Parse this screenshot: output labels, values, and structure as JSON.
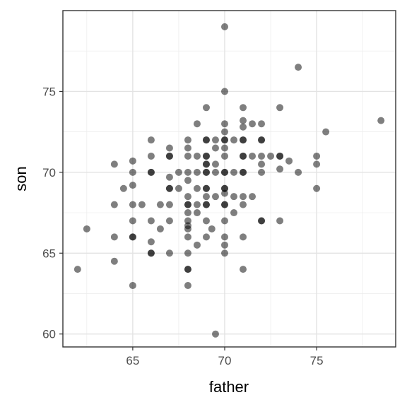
{
  "chart_data": {
    "type": "scatter",
    "title": "",
    "xlabel": "father",
    "ylabel": "son",
    "xlim": [
      61.2,
      79.3
    ],
    "ylim": [
      59.2,
      80.0
    ],
    "x_ticks": [
      65,
      70,
      75
    ],
    "y_ticks": [
      60,
      65,
      70,
      75
    ],
    "x_tick_labels": [
      "65",
      "70",
      "75"
    ],
    "y_tick_labels": [
      "60",
      "65",
      "70",
      "75"
    ],
    "grid": true,
    "legend": "none",
    "point_color": "#000000",
    "point_opacity": 0.5,
    "points": [
      [
        62,
        64
      ],
      [
        62.5,
        66.5
      ],
      [
        64,
        70.5
      ],
      [
        64,
        68
      ],
      [
        64,
        66
      ],
      [
        64,
        64.5
      ],
      [
        64.5,
        69
      ],
      [
        65,
        70.7
      ],
      [
        65,
        70
      ],
      [
        65,
        69.2
      ],
      [
        65,
        68
      ],
      [
        65,
        67
      ],
      [
        65,
        66
      ],
      [
        65,
        66
      ],
      [
        65,
        63
      ],
      [
        65.5,
        68
      ],
      [
        66,
        72
      ],
      [
        66,
        71
      ],
      [
        66,
        70
      ],
      [
        66,
        70
      ],
      [
        66,
        67
      ],
      [
        66,
        65.7
      ],
      [
        66,
        65
      ],
      [
        66,
        65
      ],
      [
        66.5,
        68
      ],
      [
        66.5,
        66.5
      ],
      [
        67,
        71.5
      ],
      [
        67,
        71
      ],
      [
        67,
        71
      ],
      [
        67,
        69.7
      ],
      [
        67,
        69
      ],
      [
        67,
        69
      ],
      [
        67,
        68
      ],
      [
        67,
        67
      ],
      [
        67,
        65
      ],
      [
        67.5,
        70
      ],
      [
        67.5,
        69
      ],
      [
        68,
        72
      ],
      [
        68,
        71.5
      ],
      [
        68,
        71
      ],
      [
        68,
        70
      ],
      [
        68,
        69.5
      ],
      [
        68,
        68.5
      ],
      [
        68,
        68
      ],
      [
        68,
        68
      ],
      [
        68,
        67.5
      ],
      [
        68,
        67
      ],
      [
        68,
        66.7
      ],
      [
        68,
        66.5
      ],
      [
        68,
        66
      ],
      [
        68,
        65
      ],
      [
        68,
        64
      ],
      [
        68,
        64
      ],
      [
        68,
        63
      ],
      [
        68.5,
        73
      ],
      [
        68.5,
        71
      ],
      [
        68.5,
        70
      ],
      [
        68.5,
        69
      ],
      [
        68.5,
        68
      ],
      [
        68.5,
        67.5
      ],
      [
        68.5,
        65.5
      ],
      [
        69,
        74
      ],
      [
        69,
        72
      ],
      [
        69,
        72
      ],
      [
        69,
        71
      ],
      [
        69,
        71
      ],
      [
        69,
        70.5
      ],
      [
        69,
        70.5
      ],
      [
        69,
        70
      ],
      [
        69,
        70
      ],
      [
        69,
        69
      ],
      [
        69,
        69
      ],
      [
        69,
        68.5
      ],
      [
        69,
        68
      ],
      [
        69,
        68
      ],
      [
        69,
        67
      ],
      [
        69,
        66
      ],
      [
        69.3,
        66.5
      ],
      [
        69.5,
        72
      ],
      [
        69.5,
        71.5
      ],
      [
        69.5,
        70.5
      ],
      [
        69.5,
        70
      ],
      [
        69.5,
        68.5
      ],
      [
        69.5,
        60
      ],
      [
        70,
        79
      ],
      [
        70,
        75
      ],
      [
        70,
        73
      ],
      [
        70,
        72.5
      ],
      [
        70,
        72
      ],
      [
        70,
        72
      ],
      [
        70,
        71.5
      ],
      [
        70,
        71
      ],
      [
        70,
        70
      ],
      [
        70,
        70
      ],
      [
        70,
        69
      ],
      [
        70,
        69
      ],
      [
        70,
        68.7
      ],
      [
        70,
        68
      ],
      [
        70,
        68
      ],
      [
        70,
        67
      ],
      [
        70,
        66
      ],
      [
        70,
        65.5
      ],
      [
        70,
        65
      ],
      [
        70.5,
        72
      ],
      [
        70.5,
        70
      ],
      [
        70.5,
        68.5
      ],
      [
        70.5,
        67.5
      ],
      [
        71,
        74
      ],
      [
        71,
        73.2
      ],
      [
        71,
        72.8
      ],
      [
        71,
        72
      ],
      [
        71,
        72
      ],
      [
        71,
        71
      ],
      [
        71,
        71
      ],
      [
        71,
        70
      ],
      [
        71,
        70
      ],
      [
        71,
        68.5
      ],
      [
        71,
        68
      ],
      [
        71,
        66
      ],
      [
        71,
        64
      ],
      [
        71.5,
        73
      ],
      [
        71.5,
        71
      ],
      [
        71.5,
        68.5
      ],
      [
        72,
        73
      ],
      [
        72,
        72
      ],
      [
        72,
        72
      ],
      [
        72,
        71
      ],
      [
        72,
        70.5
      ],
      [
        72,
        70
      ],
      [
        72,
        67
      ],
      [
        72,
        67
      ],
      [
        72.5,
        71
      ],
      [
        73,
        74
      ],
      [
        73,
        71
      ],
      [
        73,
        71
      ],
      [
        73,
        70.2
      ],
      [
        73,
        67
      ],
      [
        73.5,
        70.7
      ],
      [
        74,
        76.5
      ],
      [
        74,
        70
      ],
      [
        75,
        71
      ],
      [
        75,
        70.5
      ],
      [
        75,
        69
      ],
      [
        75.5,
        72.5
      ],
      [
        78.5,
        73.2
      ]
    ]
  }
}
